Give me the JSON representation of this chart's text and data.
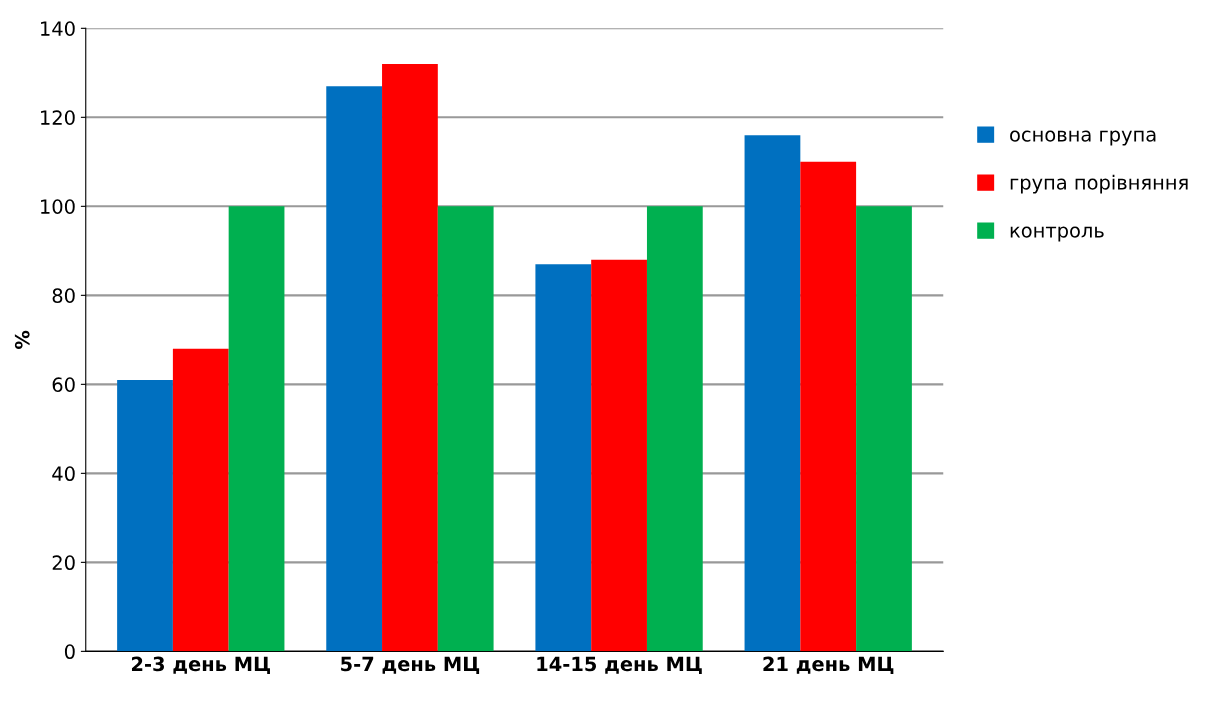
{
  "chart_data": {
    "type": "bar",
    "ylabel": "%",
    "categories": [
      "2-3 день МЦ",
      "5-7 день МЦ",
      "14-15 день МЦ",
      "21 день МЦ"
    ],
    "series": [
      {
        "name": "основна група",
        "color": "#0070c0",
        "values": [
          61,
          127,
          87,
          116
        ]
      },
      {
        "name": "група порівняння",
        "color": "#ff0000",
        "values": [
          68,
          132,
          88,
          110
        ]
      },
      {
        "name": "контроль",
        "color": "#00b050",
        "values": [
          100,
          100,
          100,
          100
        ]
      }
    ],
    "ylim": [
      0,
      140
    ],
    "yticks": [
      0,
      20,
      40,
      60,
      80,
      100,
      120,
      140
    ],
    "grid": "y",
    "legend": "right"
  }
}
